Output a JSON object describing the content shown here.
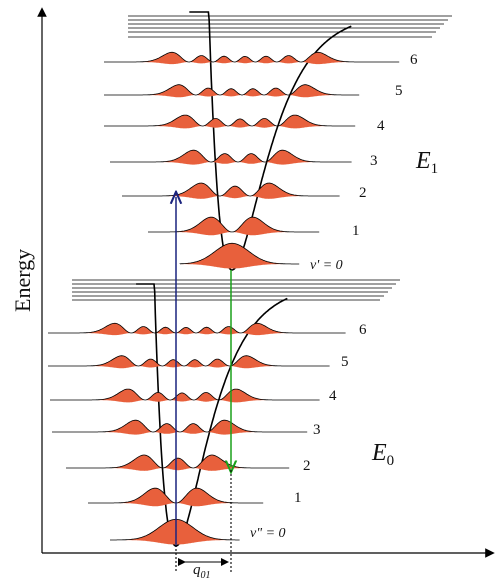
{
  "axis": {
    "ylabel": "Energy"
  },
  "upper_state": {
    "name": "E",
    "subscript": "1",
    "levels": [
      "v' = 0",
      "1",
      "2",
      "3",
      "4",
      "5",
      "6"
    ]
  },
  "lower_state": {
    "name": "E",
    "subscript": "0",
    "levels": [
      "v\" = 0",
      "1",
      "2",
      "3",
      "4",
      "5",
      "6"
    ]
  },
  "displacement_label": {
    "symbol": "q",
    "subscript": "01"
  },
  "colors": {
    "wavefunction": "#e8603c",
    "curve": "#000000",
    "absorption": "#1a237e",
    "emission": "#1aa11a"
  }
}
